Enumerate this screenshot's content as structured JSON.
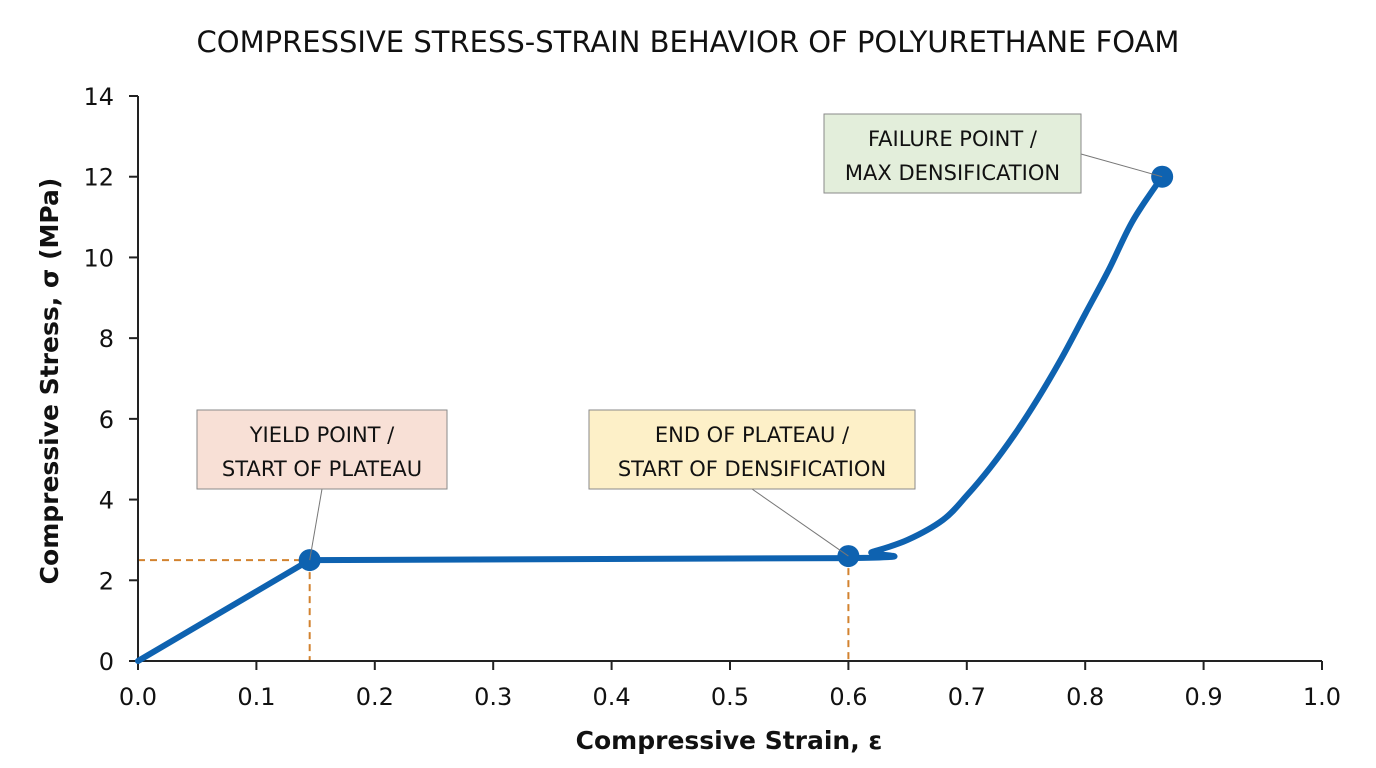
{
  "chart_data": {
    "type": "line",
    "title": "COMPRESSIVE STRESS-STRAIN BEHAVIOR OF POLYURETHANE FOAM",
    "xlabel": "Compressive Strain, ε",
    "ylabel": "Compressive Stress, σ (MPa)",
    "xlim": [
      0.0,
      1.0
    ],
    "ylim": [
      0,
      14
    ],
    "x_ticks": [
      "0.0",
      "0.1",
      "0.2",
      "0.3",
      "0.4",
      "0.5",
      "0.6",
      "0.7",
      "0.8",
      "0.9",
      "1.0"
    ],
    "y_ticks": [
      "0",
      "2",
      "4",
      "6",
      "8",
      "10",
      "12",
      "14"
    ],
    "grid": false,
    "legend": "none",
    "series": [
      {
        "color": "#0e62b0",
        "x": [
          0.0,
          0.145,
          0.6,
          0.62,
          0.65,
          0.68,
          0.7,
          0.72,
          0.74,
          0.76,
          0.78,
          0.8,
          0.82,
          0.84,
          0.865
        ],
        "y": [
          0.0,
          2.5,
          2.55,
          2.7,
          3.0,
          3.5,
          4.1,
          4.8,
          5.6,
          6.5,
          7.5,
          8.6,
          9.7,
          10.9,
          12.0
        ]
      }
    ],
    "points": [
      {
        "x": 0.145,
        "y": 2.5
      },
      {
        "x": 0.6,
        "y": 2.6
      },
      {
        "x": 0.865,
        "y": 12.0
      }
    ],
    "annotations": [
      {
        "lines": [
          "YIELD POINT /",
          "START OF PLATEAU"
        ],
        "fill": "#f8e0d6"
      },
      {
        "lines": [
          "END OF PLATEAU /",
          "START OF DENSIFICATION"
        ],
        "fill": "#fdf0c8"
      },
      {
        "lines": [
          "FAILURE POINT /",
          "MAX DENSIFICATION"
        ],
        "fill": "#e3eedb"
      }
    ],
    "reference_line_color": "#d2822f"
  }
}
